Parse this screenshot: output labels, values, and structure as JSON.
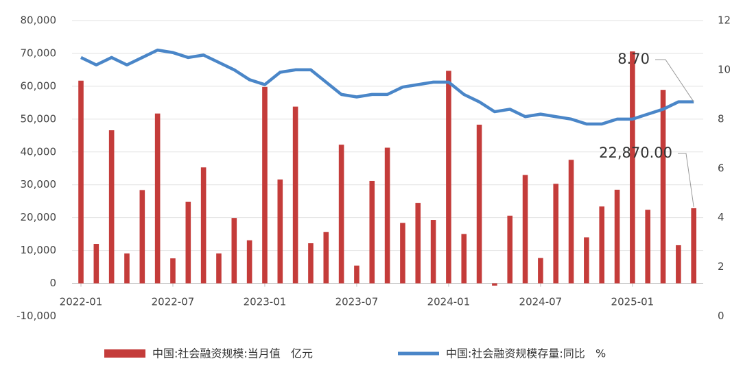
{
  "chart_data": {
    "type": "bar-line",
    "categories": [
      "2022-01",
      null,
      null,
      null,
      null,
      null,
      "2022-07",
      null,
      null,
      null,
      null,
      null,
      "2023-01",
      null,
      null,
      null,
      null,
      null,
      "2023-07",
      null,
      null,
      null,
      null,
      null,
      "2024-01",
      null,
      null,
      null,
      null,
      null,
      "2024-07",
      null,
      null,
      null,
      null,
      null,
      "2025-01",
      null,
      null,
      null,
      null
    ],
    "series": [
      {
        "name": "中国:社会融资规模:当月值   亿元",
        "type": "bar",
        "color": "#c43c3a",
        "values": [
          61700,
          12000,
          46600,
          9100,
          28400,
          51700,
          7600,
          24800,
          35300,
          9100,
          19900,
          13100,
          59800,
          31600,
          53800,
          12200,
          15600,
          42200,
          5400,
          31200,
          41300,
          18400,
          24500,
          19300,
          64700,
          15000,
          48300,
          -700,
          20600,
          33000,
          7700,
          30300,
          37600,
          14000,
          23400,
          28500,
          70600,
          22400,
          58900,
          11600,
          22870
        ],
        "value_labels": [
          null,
          null,
          null,
          null,
          null,
          null,
          null,
          null,
          null,
          null,
          null,
          null,
          null,
          null,
          null,
          null,
          null,
          null,
          null,
          null,
          null,
          null,
          null,
          null,
          null,
          null,
          null,
          null,
          null,
          null,
          null,
          null,
          null,
          null,
          null,
          null,
          null,
          null,
          null,
          null,
          "22,870.00"
        ]
      },
      {
        "name": "中国:社会融资规模存量:同比   %",
        "type": "line",
        "axis": "y2",
        "color": "#4a86c8",
        "values": [
          10.5,
          10.2,
          10.5,
          10.2,
          10.5,
          10.8,
          10.7,
          10.5,
          10.6,
          10.3,
          10.0,
          9.6,
          9.4,
          9.9,
          10.0,
          10.0,
          9.5,
          9.0,
          8.9,
          9.0,
          9.0,
          9.3,
          9.4,
          9.5,
          9.5,
          9.0,
          8.7,
          8.3,
          8.4,
          8.1,
          8.2,
          8.1,
          8.0,
          7.8,
          7.8,
          8.0,
          8.0,
          8.2,
          8.4,
          8.7,
          8.7
        ],
        "value_labels": [
          null,
          null,
          null,
          null,
          null,
          null,
          null,
          null,
          null,
          null,
          null,
          null,
          null,
          null,
          null,
          null,
          null,
          null,
          null,
          null,
          null,
          null,
          null,
          null,
          null,
          null,
          null,
          null,
          null,
          null,
          null,
          null,
          null,
          null,
          null,
          null,
          null,
          null,
          null,
          null,
          "8.70"
        ]
      }
    ],
    "ylim": [
      -10000,
      80000
    ],
    "yticks": [
      {
        "value": -10000,
        "label": "-10,000"
      },
      0,
      {
        "value": 10000,
        "label": "10,000"
      },
      {
        "value": 20000,
        "label": "20,000"
      },
      {
        "value": 30000,
        "label": "30,000"
      },
      {
        "value": 40000,
        "label": "40,000"
      },
      {
        "value": 50000,
        "label": "50,000"
      },
      {
        "value": 60000,
        "label": "60,000"
      },
      {
        "value": 70000,
        "label": "70,000"
      },
      {
        "value": 80000,
        "label": "80,000"
      }
    ],
    "y2lim": [
      0,
      12
    ],
    "y2ticks": [
      0,
      2,
      4,
      6,
      8,
      10,
      12
    ],
    "grid": true
  }
}
